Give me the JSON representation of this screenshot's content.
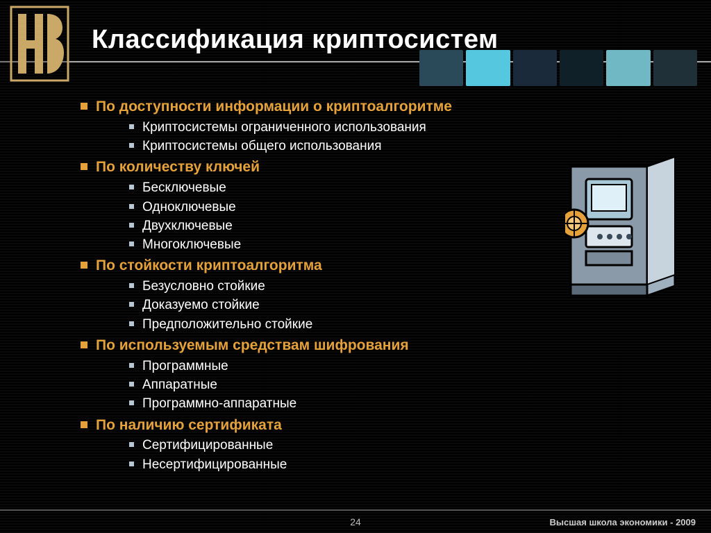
{
  "title": "Классификация криптосистем",
  "colors": {
    "accent": "#e6a23a",
    "text": "#ffffff",
    "sub_bullet": "#b7c7d4",
    "background": "#000000",
    "line": "#555555"
  },
  "globe_band_colors": [
    "#2a4a5a",
    "#55c8e0",
    "#1a2a3a",
    "#102028",
    "#70b8c4",
    "#203038"
  ],
  "sections": [
    {
      "heading": "По доступности информации о криптоалгоритме",
      "items": [
        "Криптосистемы ограниченного использования",
        "Криптосистемы общего использования"
      ]
    },
    {
      "heading": "По количеству ключей",
      "items": [
        "Бесключевые",
        "Одноключевые",
        "Двухключевые",
        "Многоключевые"
      ]
    },
    {
      "heading": "По стойкости криптоалгоритма",
      "items": [
        "Безусловно стойкие",
        "Доказуемо стойкие",
        "Предположительно стойкие"
      ]
    },
    {
      "heading": "По используемым средствам шифрования",
      "items": [
        "Программные",
        "Аппаратные",
        "Программно-аппаратные"
      ]
    },
    {
      "heading": "По наличию сертификата",
      "items": [
        "Сертифицированные",
        "Несертифицированные"
      ]
    }
  ],
  "page_number": "24",
  "footer": "Высшая школа экономики - 2009",
  "safe_icon": {
    "body_color": "#8a9aa8",
    "door_color": "#5f7080",
    "dial_color": "#e6a23a",
    "screen_color": "#a8c8d8",
    "keypad_color": "#3a4a58"
  }
}
